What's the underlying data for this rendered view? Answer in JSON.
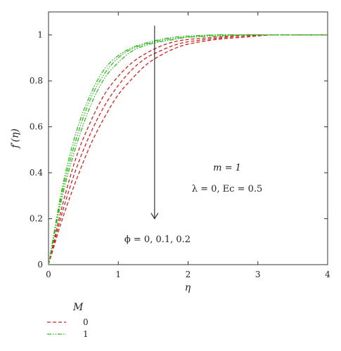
{
  "chart_data": {
    "type": "line",
    "xlabel": "η",
    "ylabel": "f′(η)",
    "xlim": [
      0,
      4
    ],
    "ylim": [
      0,
      1.1
    ],
    "xticks": [
      "0",
      "1",
      "2",
      "3",
      "4"
    ],
    "yticks": [
      "0",
      "0.2",
      "0.4",
      "0.6",
      "0.8",
      "1"
    ],
    "grid": false,
    "annotations": {
      "m": "m = 1",
      "lambda_ec": "λ = 0, Ec = 0.5",
      "phi": "ϕ = 0, 0.1, 0.2"
    },
    "legend": {
      "title": "M",
      "position": "bottom-left",
      "entries": [
        {
          "label": "0",
          "color": "#cc2222",
          "dash": "dashed"
        },
        {
          "label": "1",
          "color": "#33bb22",
          "dash": "dash-dot-dot"
        }
      ]
    },
    "x": [
      0,
      0.2,
      0.4,
      0.6,
      0.8,
      1.0,
      1.2,
      1.4,
      1.6,
      1.8,
      2.0,
      2.4,
      2.8,
      3.2,
      3.6,
      4.0
    ],
    "series": [
      {
        "name": "M = 0, ϕ = 0",
        "color": "#cc2222",
        "values": [
          0.0,
          0.26,
          0.47,
          0.62,
          0.74,
          0.82,
          0.88,
          0.92,
          0.95,
          0.97,
          0.98,
          0.99,
          1.0,
          1.0,
          1.0,
          1.0
        ]
      },
      {
        "name": "M = 0, ϕ = 0.1",
        "color": "#cc2222",
        "values": [
          0.0,
          0.23,
          0.42,
          0.57,
          0.69,
          0.78,
          0.85,
          0.9,
          0.93,
          0.955,
          0.97,
          0.985,
          0.995,
          1.0,
          1.0,
          1.0
        ]
      },
      {
        "name": "M = 0, ϕ = 0.2",
        "color": "#cc2222",
        "values": [
          0.0,
          0.2,
          0.37,
          0.52,
          0.64,
          0.74,
          0.81,
          0.87,
          0.91,
          0.94,
          0.96,
          0.98,
          0.99,
          1.0,
          1.0,
          1.0
        ]
      },
      {
        "name": "M = 1, ϕ = 0",
        "color": "#33bb22",
        "values": [
          0.0,
          0.34,
          0.58,
          0.74,
          0.85,
          0.91,
          0.945,
          0.965,
          0.98,
          0.99,
          0.995,
          1.0,
          1.0,
          1.0,
          1.0,
          1.0
        ]
      },
      {
        "name": "M = 1, ϕ = 0.1",
        "color": "#33bb22",
        "values": [
          0.0,
          0.32,
          0.55,
          0.72,
          0.83,
          0.9,
          0.94,
          0.96,
          0.975,
          0.985,
          0.99,
          1.0,
          1.0,
          1.0,
          1.0,
          1.0
        ]
      },
      {
        "name": "M = 1, ϕ = 0.2",
        "color": "#33bb22",
        "values": [
          0.0,
          0.3,
          0.52,
          0.69,
          0.81,
          0.88,
          0.93,
          0.955,
          0.97,
          0.98,
          0.99,
          0.995,
          1.0,
          1.0,
          1.0,
          1.0
        ]
      }
    ],
    "arrow": {
      "x": 1.52,
      "y_from": 1.04,
      "y_to": 0.2
    }
  }
}
